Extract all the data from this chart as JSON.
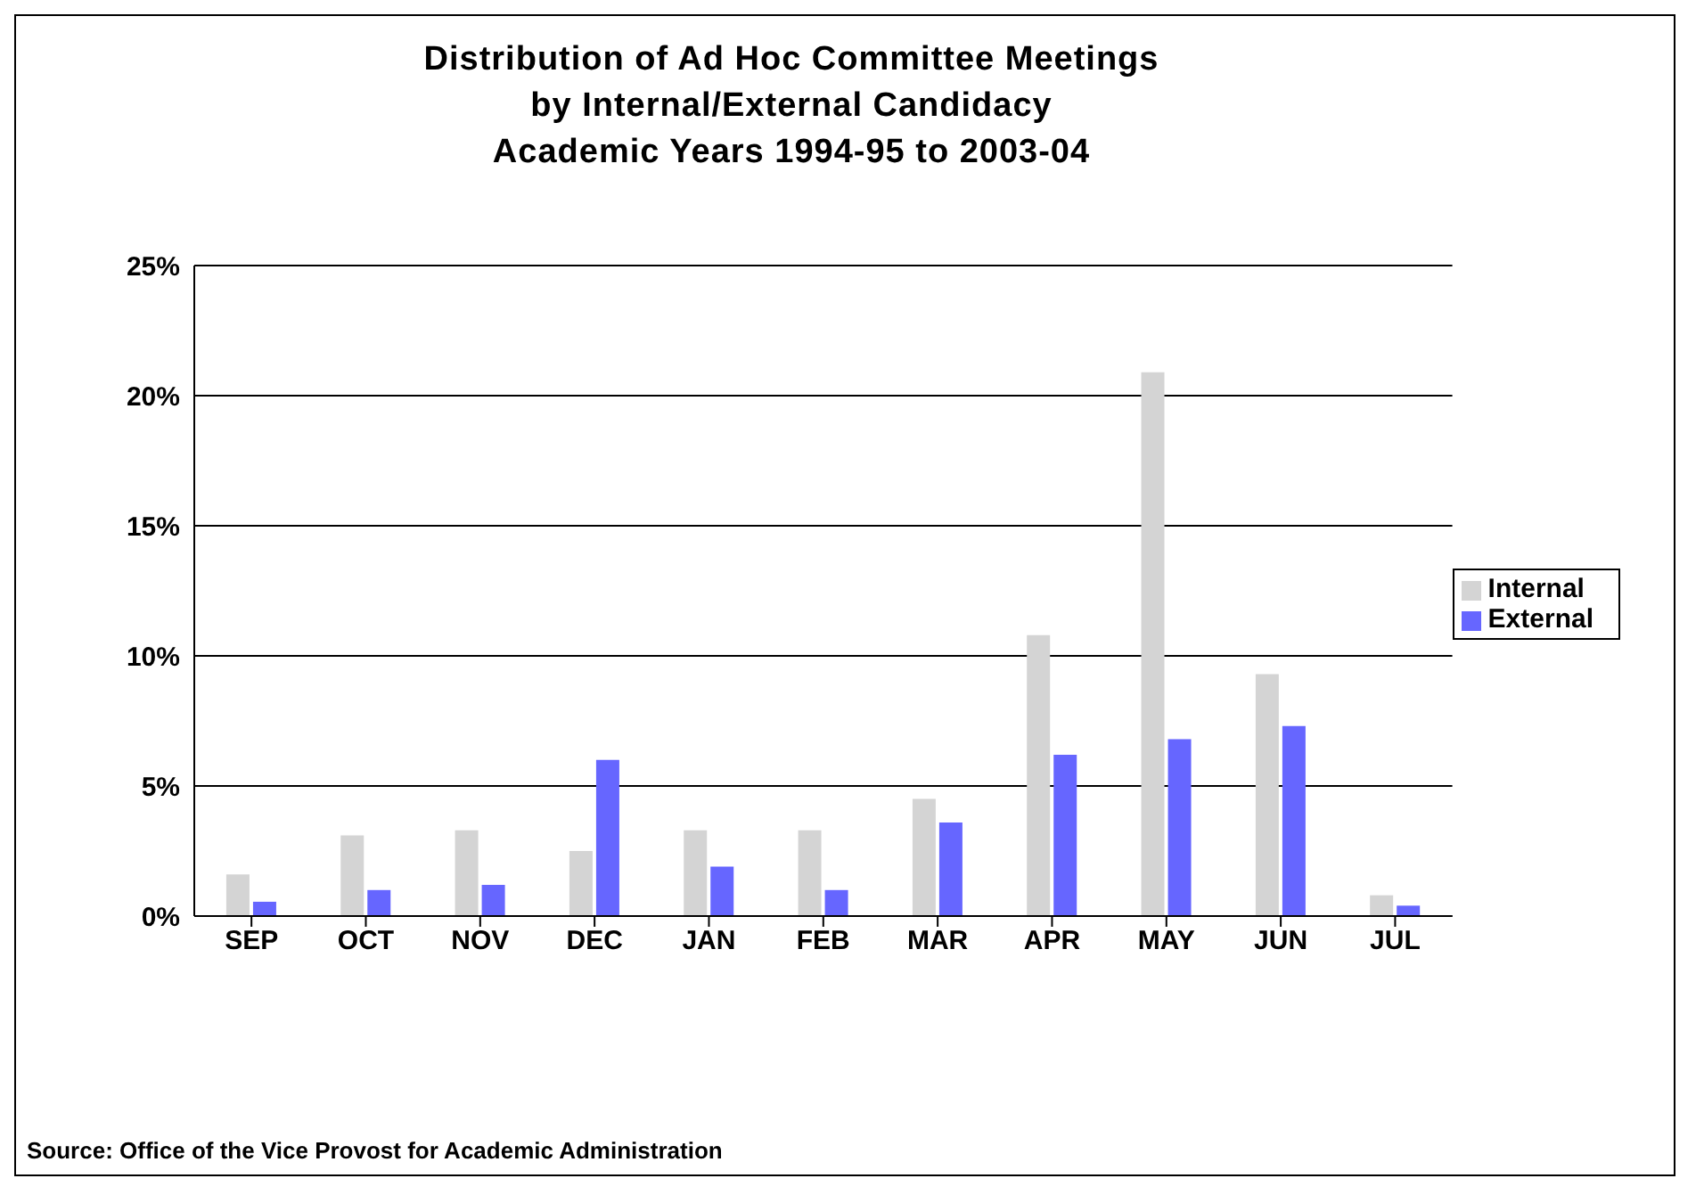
{
  "chart_data": {
    "type": "bar",
    "title": "Distribution of Ad Hoc Committee Meetings\nby Internal/External Candidacy\nAcademic Years 1994-95 to 2003-04",
    "categories": [
      "SEP",
      "OCT",
      "NOV",
      "DEC",
      "JAN",
      "FEB",
      "MAR",
      "APR",
      "MAY",
      "JUN",
      "JUL"
    ],
    "series": [
      {
        "name": "Internal",
        "color": "#d4d4d4",
        "values": [
          1.6,
          3.1,
          3.3,
          2.5,
          3.3,
          3.3,
          4.5,
          10.8,
          20.9,
          9.3,
          0.8
        ]
      },
      {
        "name": "External",
        "color": "#6666ff",
        "values": [
          0.55,
          1.0,
          1.2,
          6.0,
          1.9,
          1.0,
          3.6,
          6.2,
          6.8,
          7.3,
          0.4
        ]
      }
    ],
    "ylim": [
      0,
      25
    ],
    "yticks": [
      {
        "value": 0,
        "label": "0%"
      },
      {
        "value": 5,
        "label": "5%"
      },
      {
        "value": 10,
        "label": "10%"
      },
      {
        "value": 15,
        "label": "15%"
      },
      {
        "value": 20,
        "label": "20%"
      },
      {
        "value": 25,
        "label": "25%"
      }
    ],
    "grid": "y",
    "legend": "right",
    "annotations": [
      "Source: Office of the Vice Provost for Academic Administration"
    ]
  }
}
